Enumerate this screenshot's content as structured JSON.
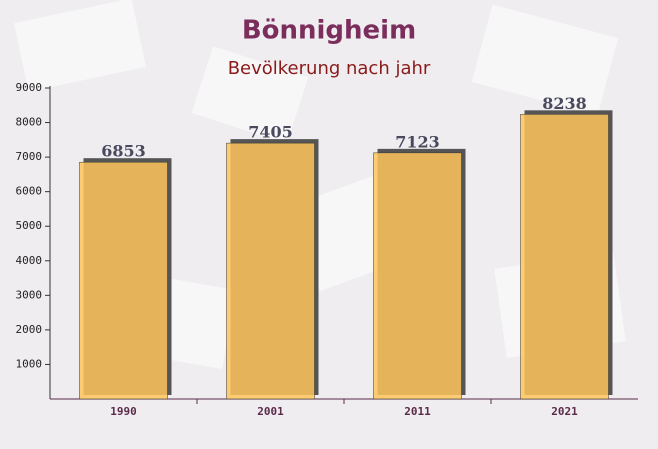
{
  "chart_data": {
    "type": "bar",
    "title": "Bönnigheim",
    "subtitle": "Bevölkerung nach jahr",
    "categories": [
      "1990",
      "2001",
      "2011",
      "2021"
    ],
    "values": [
      6853,
      7405,
      7123,
      8238
    ],
    "color": "#ffc65c",
    "ylim": [
      0,
      9000
    ],
    "yticks": [
      1000,
      2000,
      3000,
      4000,
      5000,
      6000,
      7000,
      8000,
      9000
    ]
  }
}
